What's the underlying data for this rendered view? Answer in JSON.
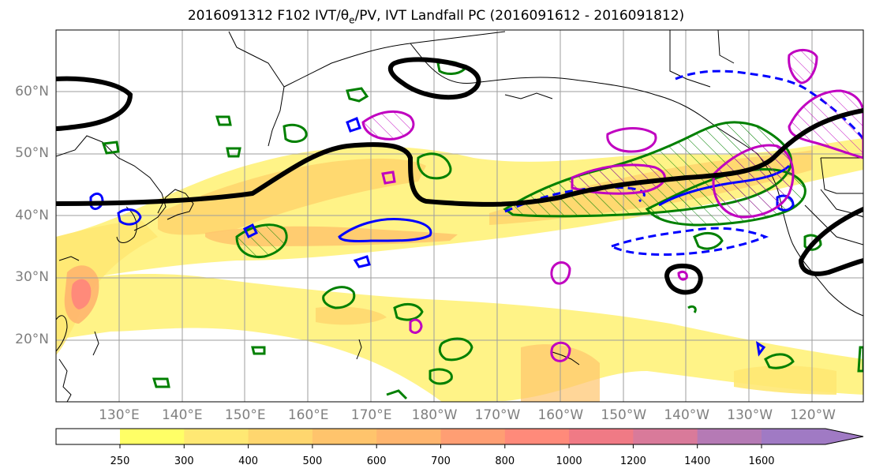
{
  "title": {
    "prefix": "2016091312 F102 IVT/",
    "theta": "θ",
    "theta_sub": "e",
    "suffix": "/PV, IVT Landfall PC (2016091612 - 2016091812)"
  },
  "map": {
    "lat_labels": [
      {
        "text": "60°N",
        "lat": 60
      },
      {
        "text": "50°N",
        "lat": 50
      },
      {
        "text": "40°N",
        "lat": 40
      },
      {
        "text": "30°N",
        "lat": 30
      },
      {
        "text": "20°N",
        "lat": 20
      }
    ],
    "lon_labels": [
      {
        "text": "130°E",
        "lon": 130
      },
      {
        "text": "140°E",
        "lon": 140
      },
      {
        "text": "150°E",
        "lon": 150
      },
      {
        "text": "160°E",
        "lon": 160
      },
      {
        "text": "170°E",
        "lon": 170
      },
      {
        "text": "180°W",
        "lon": 180
      },
      {
        "text": "170°W",
        "lon": 190
      },
      {
        "text": "160°W",
        "lon": 200
      },
      {
        "text": "150°W",
        "lon": 210
      },
      {
        "text": "140°W",
        "lon": 220
      },
      {
        "text": "130°W",
        "lon": 230
      },
      {
        "text": "120°W",
        "lon": 240
      }
    ],
    "lon_range": [
      120,
      248
    ],
    "lat_range": [
      10,
      70
    ],
    "grid": true
  },
  "colorbar": {
    "ticks": [
      "250",
      "300",
      "400",
      "500",
      "600",
      "700",
      "800",
      "1000",
      "1200",
      "1400",
      "1600"
    ],
    "colors": [
      "#ffff66",
      "#ffe873",
      "#ffd66e",
      "#ffc46c",
      "#ffb56e",
      "#ff9e73",
      "#ff8a7a",
      "#f07a85",
      "#d97a9a",
      "#b57ab5",
      "#a07ac4"
    ],
    "extend": "max"
  },
  "legend_colors": {
    "ivt_fill": "#ffd966",
    "theta_e": "#008000",
    "pv_positive": "#0000ff",
    "pc": "#c000c0",
    "contour_black": "#000000"
  }
}
